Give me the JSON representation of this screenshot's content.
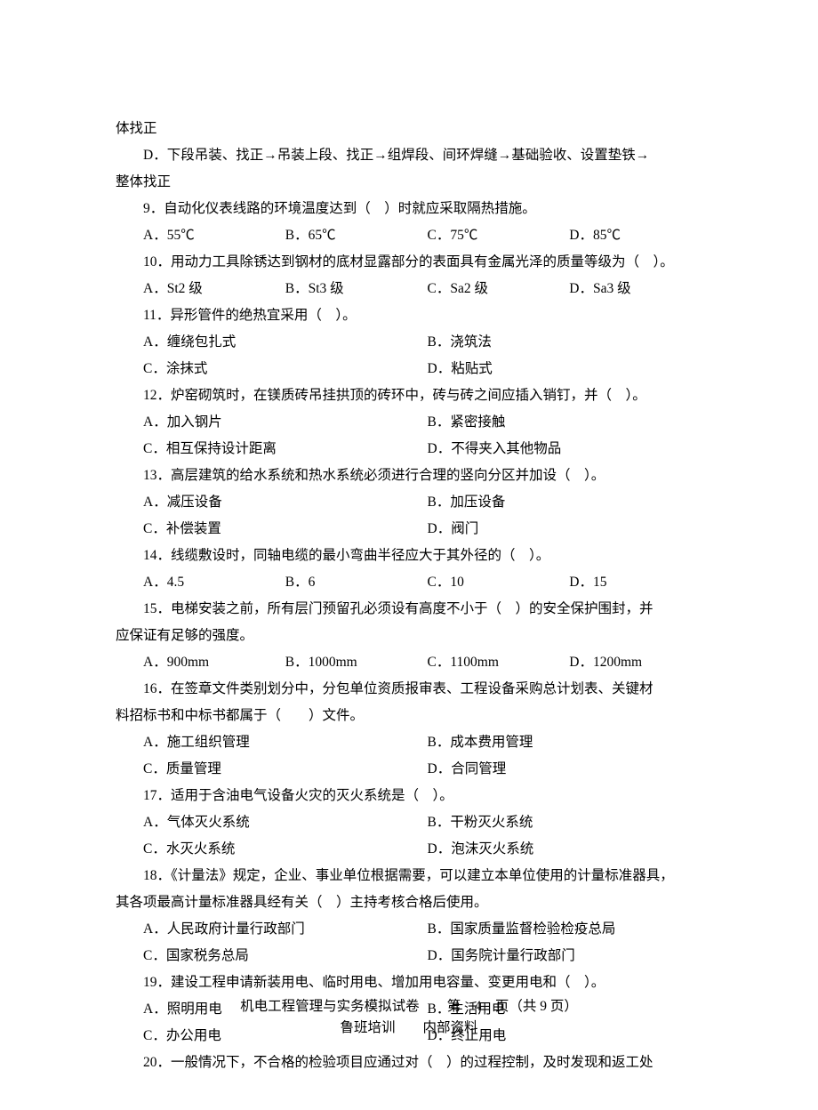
{
  "frag_top1": "体找正",
  "q8_optD": "D．下段吊装、找正→吊装上段、找正→组焊段、间环焊缝→基础验收、设置垫铁→",
  "frag_top2": "整体找正",
  "q9": "9．自动化仪表线路的环境温度达到（　）时就应采取隔热措施。",
  "q9_A": "A．55℃",
  "q9_B": "B．65℃",
  "q9_C": "C．75℃",
  "q9_D": "D．85℃",
  "q10": "10．用动力工具除锈达到钢材的底材显露部分的表面具有金属光泽的质量等级为（　）。",
  "q10_A": "A．St2 级",
  "q10_B": "B．St3 级",
  "q10_C": "C．Sa2 级",
  "q10_D": "D．Sa3 级",
  "q11": "11．异形管件的绝热宜采用（　）。",
  "q11_A": "A．缠绕包扎式",
  "q11_B": "B．浇筑法",
  "q11_C": "C．涂抹式",
  "q11_D": "D．粘贴式",
  "q12": "12．炉窑砌筑时，在镁质砖吊挂拱顶的砖环中，砖与砖之间应插入销钉，并（　）。",
  "q12_A": "A．加入钢片",
  "q12_B": "B．紧密接触",
  "q12_C": "C．相互保持设计距离",
  "q12_D": "D．不得夹入其他物品",
  "q13": "13．高层建筑的给水系统和热水系统必须进行合理的竖向分区并加设（　）。",
  "q13_A": "A．减压设备",
  "q13_B": "B．加压设备",
  "q13_C": "C．补偿装置",
  "q13_D": "D．阀门",
  "q14": "14．线缆敷设时，同轴电缆的最小弯曲半径应大于其外径的（　）。",
  "q14_A": "A．4.5",
  "q14_B": "B．6",
  "q14_C": "C．10",
  "q14_D": "D．15",
  "q15a": "15．电梯安装之前，所有层门预留孔必须设有高度不小于（　）的安全保护围封，并",
  "q15b": "应保证有足够的强度。",
  "q15_A": "A．900mm",
  "q15_B": "B．1000mm",
  "q15_C": "C．1100mm",
  "q15_D": "D．1200mm",
  "q16a": "16．在签章文件类别划分中，分包单位资质报审表、工程设备采购总计划表、关键材",
  "q16b": "料招标书和中标书都属于（　　）文件。",
  "q16_A": "A．施工组织管理",
  "q16_B": "B．成本费用管理",
  "q16_C": "C．质量管理",
  "q16_D": "D．合同管理",
  "q17": "17．适用于含油电气设备火灾的灭火系统是（　）。",
  "q17_A": "A．气体灭火系统",
  "q17_B": "B．干粉灭火系统",
  "q17_C": "C．水灭火系统",
  "q17_D": "D．泡沫灭火系统",
  "q18a": "18．《计量法》规定，企业、事业单位根据需要，可以建立本单位使用的计量标准器具，",
  "q18b": "其各项最高计量标准器具经有关（　）主持考核合格后使用。",
  "q18_A": "A．人民政府计量行政部门",
  "q18_B": "B．国家质量监督检验检疫总局",
  "q18_C": "C．国家税务总局",
  "q18_D": "D．国务院计量行政部门",
  "q19": "19．建设工程申请新装用电、临时用电、增加用电容量、变更用电和（　）。",
  "q19_A": "A．照明用电",
  "q19_B": "B．生活用电",
  "q19_C": "C．办公用电",
  "q19_D": "D．终止用电",
  "q20": "20．一般情况下，不合格的检验项目应通过对（　）的过程控制，及时发现和返工处",
  "footer1": "机电工程管理与实务模拟试卷　　第　4　页（共 9 页）",
  "footer2": "鲁班培训　　内部资料"
}
